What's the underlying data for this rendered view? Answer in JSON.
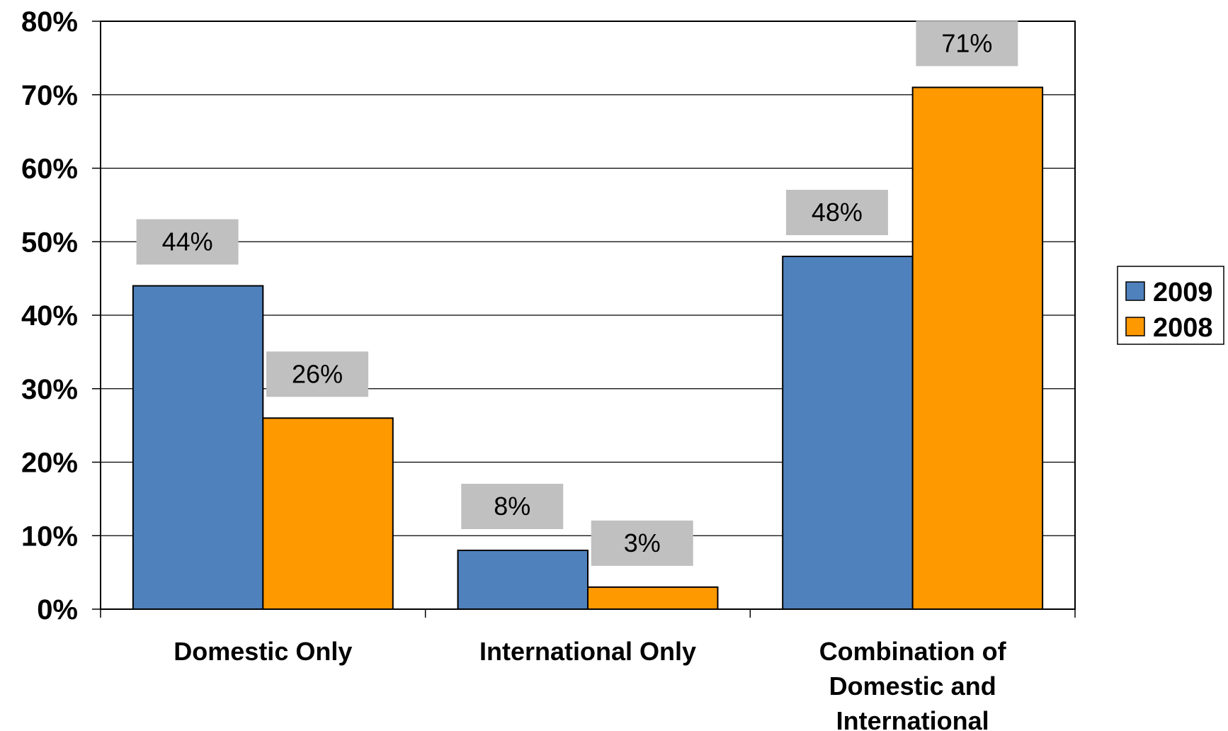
{
  "chart_data": {
    "type": "bar",
    "title": "",
    "xlabel": "",
    "ylabel": "",
    "categories": [
      [
        "Domestic Only"
      ],
      [
        "International Only"
      ],
      [
        "Combination of",
        "Domestic and",
        "International"
      ]
    ],
    "series": [
      {
        "name": "2009",
        "color": "#4F81BD",
        "values": [
          44,
          8,
          48
        ],
        "labels": [
          "44%",
          "8%",
          "48%"
        ]
      },
      {
        "name": "2008",
        "color": "#FF9900",
        "values": [
          26,
          3,
          71
        ],
        "labels": [
          "26%",
          "3%",
          "71%"
        ]
      }
    ],
    "ylim": [
      0,
      80
    ],
    "yticks": [
      "0%",
      "10%",
      "20%",
      "30%",
      "40%",
      "50%",
      "60%",
      "70%",
      "80%"
    ],
    "grid": true,
    "legend": "right",
    "label_box_color": "#C0C0C0"
  }
}
